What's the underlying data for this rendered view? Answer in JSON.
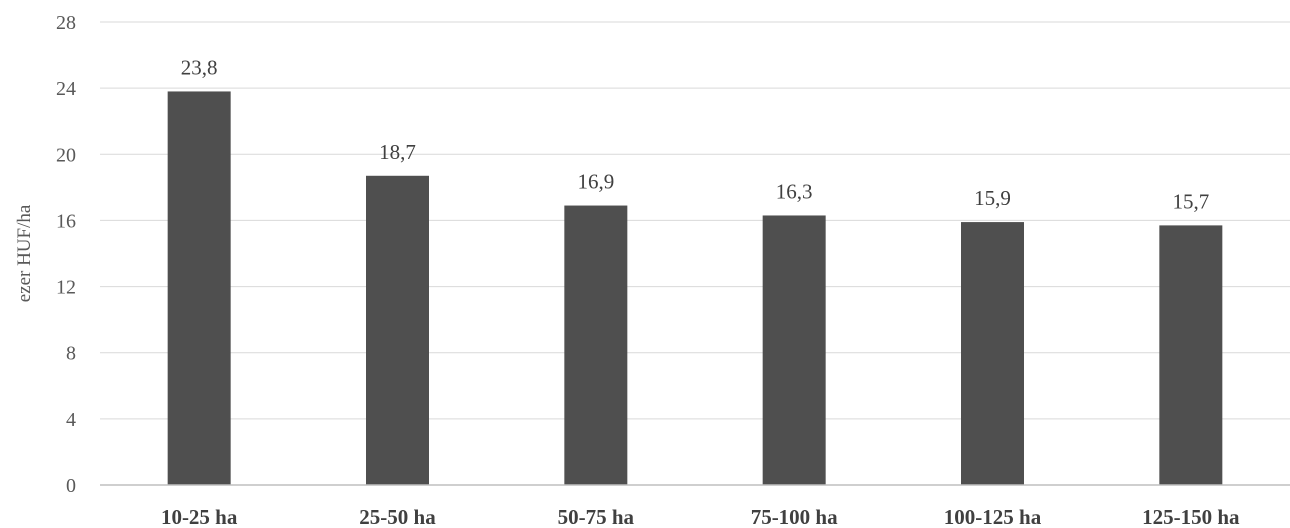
{
  "chart_data": {
    "type": "bar",
    "title": "",
    "xlabel": "",
    "ylabel": "ezer HUF/ha",
    "categories": [
      "10-25 ha",
      "25-50 ha",
      "50-75 ha",
      "75-100 ha",
      "100-125 ha",
      "125-150 ha"
    ],
    "values": [
      23.8,
      18.7,
      16.9,
      16.3,
      15.9,
      15.7
    ],
    "data_labels": [
      "23,8",
      "18,7",
      "16,9",
      "16,3",
      "15,9",
      "15,7"
    ],
    "ylim": [
      0,
      28
    ],
    "yticks": [
      0,
      4,
      8,
      12,
      16,
      20,
      24,
      28
    ],
    "grid": true,
    "legend": "none",
    "bar_color": "#4f4f4f",
    "grid_color": "#d9d9d9",
    "axis_color": "#bfbfbf"
  }
}
